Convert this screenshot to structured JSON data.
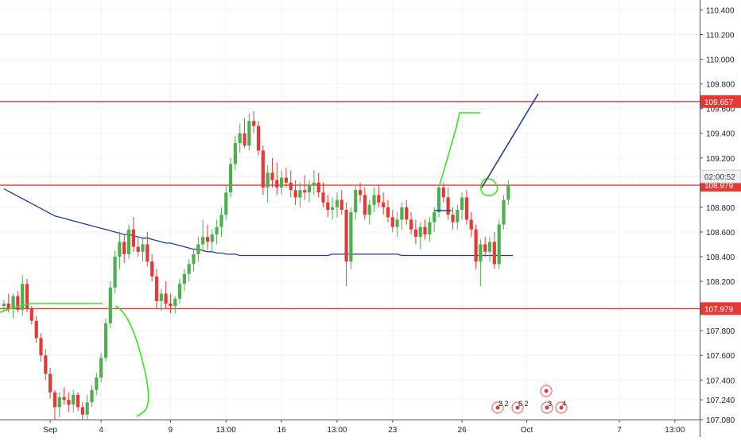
{
  "chart_data": {
    "type": "candlestick",
    "title": "",
    "xlabel": "",
    "ylabel": "",
    "ylim": [
      107.08,
      110.48
    ],
    "price_ticks": [
      "110.400",
      "110.200",
      "110.000",
      "109.800",
      "109.600",
      "109.400",
      "109.200",
      "109.000",
      "108.800",
      "108.600",
      "108.400",
      "108.200",
      "108.000",
      "107.800",
      "107.600",
      "107.400",
      "107.240",
      "107.080"
    ],
    "time_ticks": [
      {
        "label": "Sep",
        "bar": 10
      },
      {
        "label": "4",
        "bar": 21
      },
      {
        "label": "9",
        "bar": 36
      },
      {
        "label": "13:00",
        "bar": 48
      },
      {
        "label": "16",
        "bar": 60
      },
      {
        "label": "13:00",
        "bar": 72
      },
      {
        "label": "23",
        "bar": 84
      },
      {
        "label": "26",
        "bar": 99
      },
      {
        "label": "Oct",
        "bar": 113
      },
      {
        "label": "7",
        "bar": 133
      },
      {
        "label": "13:00",
        "bar": 145
      }
    ],
    "bar_count": 162,
    "grid": true,
    "candles_ohlc": [
      [
        108.0,
        108.05,
        107.96,
        108.02
      ],
      [
        108.02,
        108.1,
        107.95,
        107.98
      ],
      [
        107.98,
        108.1,
        107.9,
        108.08
      ],
      [
        108.08,
        108.12,
        107.95,
        107.97
      ],
      [
        107.97,
        108.25,
        107.92,
        108.18
      ],
      [
        108.18,
        108.22,
        107.95,
        107.98
      ],
      [
        107.98,
        108.0,
        107.85,
        107.88
      ],
      [
        107.88,
        107.92,
        107.7,
        107.74
      ],
      [
        107.74,
        107.78,
        107.55,
        107.6
      ],
      [
        107.6,
        107.65,
        107.4,
        107.45
      ],
      [
        107.45,
        107.5,
        107.25,
        107.3
      ],
      [
        107.3,
        107.32,
        107.08,
        107.18
      ],
      [
        107.18,
        107.3,
        107.1,
        107.26
      ],
      [
        107.26,
        107.34,
        107.2,
        107.24
      ],
      [
        107.24,
        107.3,
        107.14,
        107.2
      ],
      [
        107.2,
        107.32,
        107.14,
        107.28
      ],
      [
        107.28,
        107.3,
        107.15,
        107.18
      ],
      [
        107.18,
        107.22,
        107.08,
        107.12
      ],
      [
        107.12,
        107.28,
        107.08,
        107.22
      ],
      [
        107.22,
        107.36,
        107.18,
        107.32
      ],
      [
        107.32,
        107.46,
        107.28,
        107.42
      ],
      [
        107.42,
        107.62,
        107.38,
        107.58
      ],
      [
        107.58,
        107.9,
        107.55,
        107.86
      ],
      [
        107.86,
        108.2,
        107.82,
        108.15
      ],
      [
        108.15,
        108.45,
        108.1,
        108.4
      ],
      [
        108.4,
        108.6,
        108.3,
        108.52
      ],
      [
        108.52,
        108.58,
        108.35,
        108.42
      ],
      [
        108.42,
        108.66,
        108.38,
        108.62
      ],
      [
        108.62,
        108.72,
        108.44,
        108.48
      ],
      [
        108.48,
        108.55,
        108.4,
        108.44
      ],
      [
        108.44,
        108.56,
        108.36,
        108.5
      ],
      [
        108.5,
        108.6,
        108.32,
        108.36
      ],
      [
        108.36,
        108.42,
        108.2,
        108.24
      ],
      [
        108.24,
        108.3,
        107.98,
        108.04
      ],
      [
        108.04,
        108.14,
        107.96,
        108.1
      ],
      [
        108.1,
        108.2,
        107.98,
        108.02
      ],
      [
        108.02,
        108.1,
        107.94,
        108.0
      ],
      [
        108.0,
        108.08,
        107.94,
        108.06
      ],
      [
        108.06,
        108.22,
        108.02,
        108.18
      ],
      [
        108.18,
        108.3,
        108.12,
        108.26
      ],
      [
        108.26,
        108.38,
        108.2,
        108.34
      ],
      [
        108.34,
        108.46,
        108.28,
        108.42
      ],
      [
        108.42,
        108.56,
        108.36,
        108.5
      ],
      [
        108.5,
        108.7,
        108.44,
        108.56
      ],
      [
        108.56,
        108.66,
        108.46,
        108.52
      ],
      [
        108.52,
        108.62,
        108.44,
        108.58
      ],
      [
        108.58,
        108.7,
        108.5,
        108.64
      ],
      [
        108.64,
        108.8,
        108.56,
        108.74
      ],
      [
        108.74,
        108.98,
        108.7,
        108.92
      ],
      [
        108.92,
        109.2,
        108.88,
        109.15
      ],
      [
        109.15,
        109.38,
        109.1,
        109.32
      ],
      [
        109.32,
        109.48,
        109.24,
        109.4
      ],
      [
        109.4,
        109.52,
        109.28,
        109.3
      ],
      [
        109.3,
        109.56,
        109.26,
        109.5
      ],
      [
        109.5,
        109.58,
        109.4,
        109.46
      ],
      [
        109.46,
        109.5,
        109.22,
        109.26
      ],
      [
        109.26,
        109.3,
        108.9,
        108.96
      ],
      [
        108.96,
        109.14,
        108.84,
        109.08
      ],
      [
        109.08,
        109.2,
        108.96,
        109.02
      ],
      [
        109.02,
        109.16,
        108.9,
        108.96
      ],
      [
        108.96,
        109.1,
        108.9,
        109.04
      ],
      [
        109.04,
        109.12,
        108.96,
        109.0
      ],
      [
        109.0,
        109.1,
        108.88,
        108.94
      ],
      [
        108.94,
        109.02,
        108.82,
        108.88
      ],
      [
        108.88,
        109.0,
        108.8,
        108.94
      ],
      [
        108.94,
        109.06,
        108.86,
        108.92
      ],
      [
        108.92,
        109.02,
        108.84,
        108.98
      ],
      [
        108.98,
        109.1,
        108.9,
        109.0
      ],
      [
        109.0,
        109.08,
        108.88,
        108.92
      ],
      [
        108.92,
        109.0,
        108.8,
        108.84
      ],
      [
        108.84,
        108.9,
        108.72,
        108.78
      ],
      [
        108.78,
        108.88,
        108.7,
        108.8
      ],
      [
        108.8,
        108.92,
        108.72,
        108.86
      ],
      [
        108.86,
        108.94,
        108.74,
        108.78
      ],
      [
        108.78,
        108.84,
        108.16,
        108.36
      ],
      [
        108.36,
        108.8,
        108.3,
        108.76
      ],
      [
        108.76,
        108.98,
        108.7,
        108.94
      ],
      [
        108.94,
        109.0,
        108.84,
        108.9
      ],
      [
        108.9,
        108.96,
        108.7,
        108.74
      ],
      [
        108.74,
        108.86,
        108.66,
        108.82
      ],
      [
        108.82,
        108.96,
        108.76,
        108.9
      ],
      [
        108.9,
        108.98,
        108.8,
        108.84
      ],
      [
        108.84,
        108.92,
        108.74,
        108.8
      ],
      [
        108.8,
        108.86,
        108.68,
        108.72
      ],
      [
        108.72,
        108.78,
        108.6,
        108.64
      ],
      [
        108.64,
        108.76,
        108.56,
        108.7
      ],
      [
        108.7,
        108.84,
        108.62,
        108.8
      ],
      [
        108.8,
        108.86,
        108.66,
        108.7
      ],
      [
        108.7,
        108.76,
        108.58,
        108.62
      ],
      [
        108.62,
        108.7,
        108.5,
        108.56
      ],
      [
        108.56,
        108.68,
        108.46,
        108.64
      ],
      [
        108.64,
        108.7,
        108.54,
        108.58
      ],
      [
        108.58,
        108.72,
        108.52,
        108.68
      ],
      [
        108.68,
        108.8,
        108.6,
        108.76
      ],
      [
        108.76,
        108.98,
        108.72,
        108.96
      ],
      [
        108.96,
        109.0,
        108.84,
        108.88
      ],
      [
        108.88,
        108.96,
        108.7,
        108.74
      ],
      [
        108.74,
        108.8,
        108.62,
        108.68
      ],
      [
        108.68,
        108.82,
        108.62,
        108.78
      ],
      [
        108.78,
        108.92,
        108.7,
        108.88
      ],
      [
        108.88,
        108.94,
        108.66,
        108.7
      ],
      [
        108.7,
        108.76,
        108.56,
        108.62
      ],
      [
        108.62,
        108.66,
        108.3,
        108.36
      ],
      [
        108.36,
        108.54,
        108.16,
        108.5
      ],
      [
        108.5,
        108.56,
        108.4,
        108.44
      ],
      [
        108.44,
        108.56,
        108.36,
        108.52
      ],
      [
        108.52,
        108.6,
        108.3,
        108.34
      ],
      [
        108.34,
        108.7,
        108.3,
        108.66
      ],
      [
        108.66,
        108.9,
        108.62,
        108.86
      ],
      [
        108.86,
        109.02,
        108.82,
        108.98
      ]
    ],
    "series": [
      {
        "name": "",
        "color": "#1e3f8f",
        "values": [
          108.95,
          108.93,
          108.91,
          108.89,
          108.87,
          108.85,
          108.83,
          108.81,
          108.79,
          108.77,
          108.75,
          108.73,
          108.72,
          108.71,
          108.7,
          108.69,
          108.68,
          108.67,
          108.66,
          108.65,
          108.64,
          108.63,
          108.62,
          108.61,
          108.6,
          108.59,
          108.58,
          108.58,
          108.57,
          108.56,
          108.55,
          108.55,
          108.54,
          108.53,
          108.52,
          108.51,
          108.51,
          108.5,
          108.49,
          108.48,
          108.47,
          108.46,
          108.46,
          108.45,
          108.44,
          108.44,
          108.43,
          108.43,
          108.42,
          108.42,
          108.42,
          108.41,
          108.41,
          108.41,
          108.41,
          108.41,
          108.41,
          108.41,
          108.41,
          108.41,
          108.41,
          108.41,
          108.41,
          108.41,
          108.41,
          108.41,
          108.41,
          108.41,
          108.41,
          108.41,
          108.41,
          108.42,
          108.42,
          108.42,
          108.42,
          108.42,
          108.42,
          108.42,
          108.42,
          108.42,
          108.42,
          108.42,
          108.42,
          108.42,
          108.42,
          108.42,
          108.41,
          108.41,
          108.41,
          108.41,
          108.41,
          108.41,
          108.41,
          108.41,
          108.41,
          108.41,
          108.41,
          108.41,
          108.41,
          108.41,
          108.41,
          108.41,
          108.41,
          108.41,
          108.41,
          108.41,
          108.41,
          108.41,
          108.41,
          108.41,
          108.41
        ]
      }
    ],
    "horizontal_levels": [
      {
        "value": 109.657,
        "label": "109.657",
        "color": "#e53935"
      },
      {
        "value": 108.979,
        "label": "108.979",
        "color": "#e53935"
      },
      {
        "value": 107.979,
        "label": "107.979",
        "color": "#e53935"
      }
    ],
    "current_price": {
      "value": 109.05,
      "label": "02:00:52",
      "color": "#9e9e9e"
    },
    "candle_colors": {
      "up": "#4caf50",
      "down": "#e53935"
    }
  },
  "event_markers": [
    {
      "icon": "event-flag-icon",
      "count": "2"
    },
    {
      "icon": "event-flag-icon",
      "count": "2"
    },
    {
      "icon": "event-flag-icon",
      "count": "6"
    },
    {
      "icon": "event-flag-icon",
      "count": "2"
    },
    {
      "icon": "event-flag-icon",
      "count": "3"
    },
    {
      "icon": "event-flag-icon",
      "count": "4"
    }
  ]
}
